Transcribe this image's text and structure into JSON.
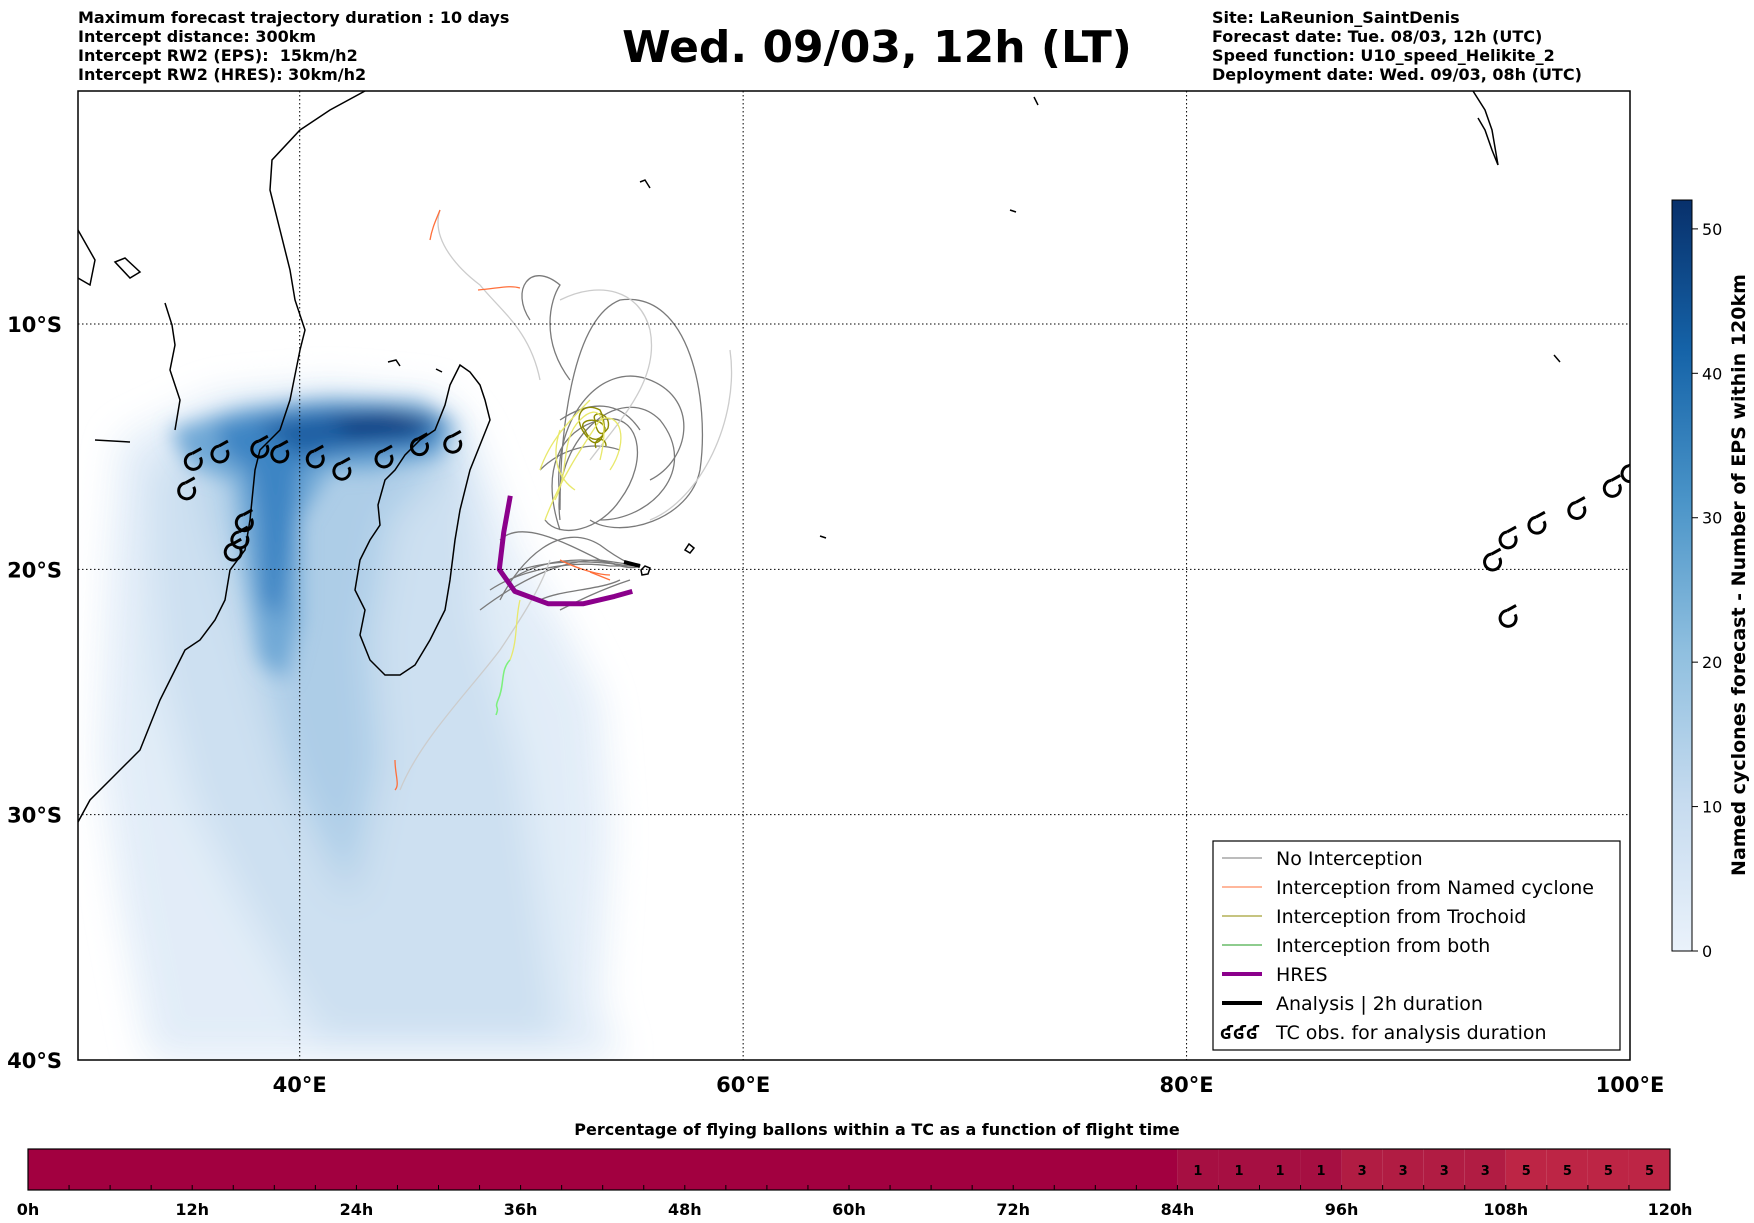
{
  "header": {
    "left_lines": [
      "Maximum forecast trajectory duration : 10 days",
      "Intercept distance: 300km",
      "Intercept RW2 (EPS):  15km/h2",
      "Intercept RW2 (HRES): 30km/h2"
    ],
    "title": "Wed. 09/03, 12h (LT)",
    "right_lines": [
      "Site: LaReunion_SaintDenis",
      "Forecast date: Tue. 08/03, 12h (UTC)",
      "Speed function: U10_speed_Helikite_2",
      "Deployment date: Wed. 09/03, 08h (UTC)"
    ]
  },
  "map": {
    "lon_range": [
      30,
      100
    ],
    "lat_range": [
      -40,
      -0.5
    ],
    "lon_ticks": [
      {
        "value": 40,
        "label": "40°E"
      },
      {
        "value": 60,
        "label": "60°E"
      },
      {
        "value": 80,
        "label": "80°E"
      },
      {
        "value": 100,
        "label": "100°E"
      }
    ],
    "lat_ticks": [
      {
        "value": -10,
        "label": "10°S"
      },
      {
        "value": -20,
        "label": "20°S"
      },
      {
        "value": -30,
        "label": "30°S"
      },
      {
        "value": -40,
        "label": "40°S"
      }
    ],
    "site": {
      "name": "LaReunion_SaintDenis",
      "lon": 55.5,
      "lat": -21.0
    },
    "tc_observations": [
      {
        "lon": 34.9,
        "lat": -16.8
      },
      {
        "lon": 35.2,
        "lat": -15.6
      },
      {
        "lon": 36.4,
        "lat": -15.3
      },
      {
        "lon": 38.2,
        "lat": -15.1
      },
      {
        "lon": 39.1,
        "lat": -15.3
      },
      {
        "lon": 40.7,
        "lat": -15.5
      },
      {
        "lon": 41.9,
        "lat": -16.0
      },
      {
        "lon": 43.8,
        "lat": -15.5
      },
      {
        "lon": 45.4,
        "lat": -15.0
      },
      {
        "lon": 46.9,
        "lat": -14.9
      },
      {
        "lon": 37.5,
        "lat": -18.1
      },
      {
        "lon": 37.3,
        "lat": -18.8
      },
      {
        "lon": 37.0,
        "lat": -19.3
      },
      {
        "lon": 93.8,
        "lat": -19.7
      },
      {
        "lon": 94.5,
        "lat": -18.8
      },
      {
        "lon": 95.8,
        "lat": -18.2
      },
      {
        "lon": 97.6,
        "lat": -17.6
      },
      {
        "lon": 99.2,
        "lat": -16.7
      },
      {
        "lon": 100.0,
        "lat": -16.1
      },
      {
        "lon": 94.5,
        "lat": -22.0
      }
    ],
    "hres_track": [
      [
        49.5,
        -17.0
      ],
      [
        49.2,
        -18.5
      ],
      [
        49.0,
        -20.0
      ],
      [
        49.7,
        -20.9
      ],
      [
        51.2,
        -21.4
      ],
      [
        52.8,
        -21.4
      ],
      [
        54.2,
        -21.1
      ],
      [
        55.0,
        -20.9
      ]
    ]
  },
  "legend": {
    "items": [
      {
        "label": "No Interception",
        "color": "#7a7a7a",
        "width": 1
      },
      {
        "label": "Interception from Named cyclone",
        "color": "#ff6f3a",
        "width": 1
      },
      {
        "label": "Interception from Trochoid",
        "color": "#8c8a00",
        "width": 1
      },
      {
        "label": "Interception from both",
        "color": "#1e9a1e",
        "width": 1
      },
      {
        "label": "HRES",
        "color": "#8b008b",
        "width": 4
      },
      {
        "label": "Analysis | 2h duration",
        "color": "#000000",
        "width": 4
      },
      {
        "label": "TC obs. for analysis duration",
        "color": "#000000",
        "width": 0
      }
    ],
    "tc_symbol": "ʛʛʛ"
  },
  "colorbar": {
    "label": "Named cyclones forecast - Number of EPS within 120km",
    "ticks": [
      0,
      10,
      20,
      30,
      40,
      50
    ],
    "max": 52,
    "color_low": "#eaf2fb",
    "color_high": "#08306b"
  },
  "flight_bar": {
    "title": "Percentage of flying ballons within a TC as a function of flight time",
    "time_labels": [
      "0h",
      "12h",
      "24h",
      "36h",
      "48h",
      "60h",
      "72h",
      "84h",
      "96h",
      "108h",
      "120h"
    ],
    "max_hours": 120,
    "cells": [
      {
        "start": 0,
        "end": 84,
        "value": "",
        "color": "#a20040"
      },
      {
        "start": 84,
        "end": 87,
        "value": "1",
        "color": "#a60f42"
      },
      {
        "start": 87,
        "end": 90,
        "value": "1",
        "color": "#a60f42"
      },
      {
        "start": 90,
        "end": 93,
        "value": "1",
        "color": "#a60f42"
      },
      {
        "start": 93,
        "end": 96,
        "value": "1",
        "color": "#a60f42"
      },
      {
        "start": 96,
        "end": 99,
        "value": "3",
        "color": "#b11c43"
      },
      {
        "start": 99,
        "end": 102,
        "value": "3",
        "color": "#b11c43"
      },
      {
        "start": 102,
        "end": 105,
        "value": "3",
        "color": "#b11c43"
      },
      {
        "start": 105,
        "end": 108,
        "value": "3",
        "color": "#b11c43"
      },
      {
        "start": 108,
        "end": 111,
        "value": "5",
        "color": "#bd2545"
      },
      {
        "start": 111,
        "end": 114,
        "value": "5",
        "color": "#bd2545"
      },
      {
        "start": 114,
        "end": 117,
        "value": "5",
        "color": "#bd2545"
      },
      {
        "start": 117,
        "end": 120,
        "value": "5",
        "color": "#bd2545"
      }
    ]
  }
}
